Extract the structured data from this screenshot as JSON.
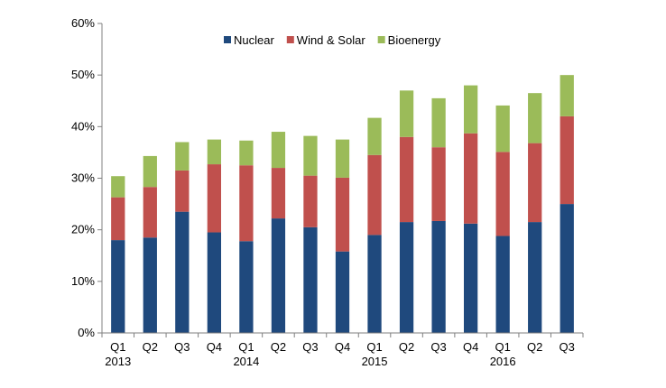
{
  "chart_data": {
    "type": "bar",
    "stacked": true,
    "title": "",
    "xlabel": "",
    "ylabel": "",
    "ylim": [
      0,
      60
    ],
    "y_ticks": [
      "0%",
      "10%",
      "20%",
      "30%",
      "40%",
      "50%",
      "60%"
    ],
    "y_tick_values": [
      0,
      10,
      20,
      30,
      40,
      50,
      60
    ],
    "categories": [
      "Q1",
      "Q2",
      "Q3",
      "Q4",
      "Q1",
      "Q2",
      "Q3",
      "Q4",
      "Q1",
      "Q2",
      "Q3",
      "Q4",
      "Q1",
      "Q2",
      "Q3"
    ],
    "year_labels": [
      {
        "index": 0,
        "label": "2013"
      },
      {
        "index": 4,
        "label": "2014"
      },
      {
        "index": 8,
        "label": "2015"
      },
      {
        "index": 12,
        "label": "2016"
      }
    ],
    "legend_position": "top-center",
    "series": [
      {
        "name": "Nuclear",
        "color": "#1F497D",
        "values": [
          18.0,
          18.5,
          23.5,
          19.5,
          17.8,
          22.2,
          20.5,
          15.8,
          19.0,
          21.5,
          21.7,
          21.2,
          18.8,
          21.5,
          25.0
        ]
      },
      {
        "name": "Wind & Solar",
        "color": "#C0504D",
        "values": [
          8.3,
          9.8,
          8.0,
          13.2,
          14.7,
          9.8,
          10.0,
          14.3,
          15.5,
          16.5,
          14.3,
          17.5,
          16.3,
          15.3,
          17.0
        ]
      },
      {
        "name": "Bioenergy",
        "color": "#9BBB59",
        "values": [
          4.1,
          6.0,
          5.5,
          4.8,
          4.8,
          7.0,
          7.7,
          7.4,
          7.2,
          9.0,
          9.5,
          9.3,
          9.0,
          9.7,
          8.0
        ]
      }
    ]
  }
}
